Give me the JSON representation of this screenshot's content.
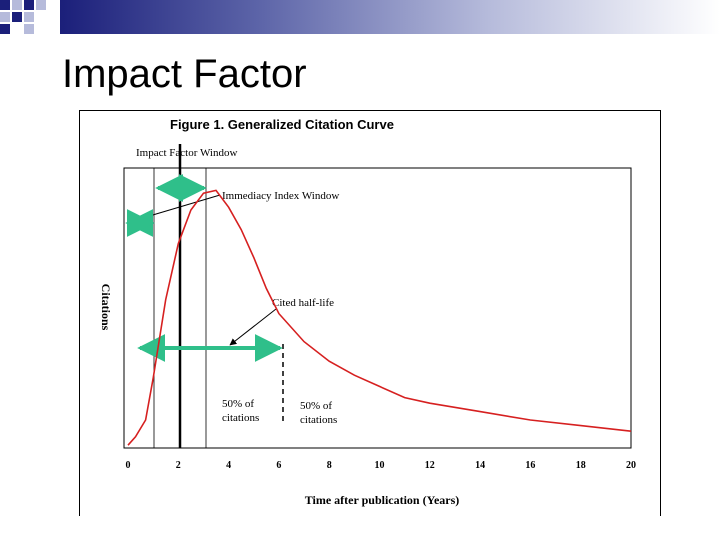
{
  "slide": {
    "title": "Impact Factor"
  },
  "chart_data": {
    "type": "line",
    "title": "Figure 1. Generalized Citation Curve",
    "xlabel": "Time after publication (Years)",
    "ylabel": "Citations",
    "xticks": [
      0,
      2,
      4,
      6,
      8,
      10,
      12,
      14,
      16,
      18,
      20
    ],
    "xlim": [
      0,
      20
    ],
    "ylim": [
      0,
      100
    ],
    "series": [
      {
        "x": [
          0,
          0.3,
          0.7,
          1.0,
          1.5,
          2.0,
          2.5,
          3.0,
          3.5,
          4.0,
          4.5,
          5.0,
          5.5,
          6.0,
          7.0,
          8.0,
          9.0,
          10.0,
          11.0,
          12.0,
          14.0,
          16.0,
          18.0,
          20.0
        ],
        "y": [
          1,
          4,
          10,
          25,
          53,
          73,
          85,
          91,
          92,
          86,
          78,
          68,
          57,
          48,
          38,
          31,
          26,
          22,
          18,
          16,
          13,
          10,
          8,
          6
        ],
        "color": "#d62020"
      }
    ],
    "annotations": {
      "impact_factor_window": "Impact Factor Window",
      "immediacy_index_window": "Immediacy Index Window",
      "cited_half_life": "Cited half-life",
      "half_left_line1": "50% of",
      "half_left_line2": "citations",
      "half_right_line1": "50% of",
      "half_right_line2": "citations"
    },
    "arrow_color": "#2fbf8a",
    "grid": false
  }
}
